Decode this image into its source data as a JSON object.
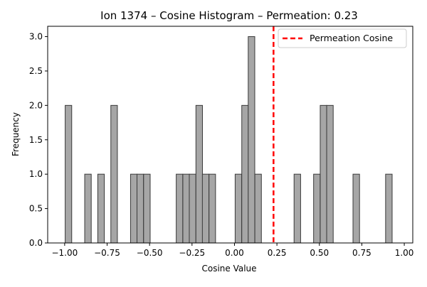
{
  "chart_data": {
    "type": "bar",
    "title": "Ion 1374 – Cosine Histogram – Permeation: 0.23",
    "xlabel": "Cosine Value",
    "ylabel": "Frequency",
    "xlim": [
      -1.1,
      1.05
    ],
    "ylim": [
      0,
      3.15
    ],
    "xticks": [
      {
        "value": -1.0,
        "label": "−1.00"
      },
      {
        "value": -0.75,
        "label": "−0.75"
      },
      {
        "value": -0.5,
        "label": "−0.50"
      },
      {
        "value": -0.25,
        "label": "−0.25"
      },
      {
        "value": 0.0,
        "label": "0.00"
      },
      {
        "value": 0.25,
        "label": "0.25"
      },
      {
        "value": 0.5,
        "label": "0.50"
      },
      {
        "value": 0.75,
        "label": "0.75"
      },
      {
        "value": 1.0,
        "label": "1.00"
      }
    ],
    "yticks": [
      {
        "value": 0.0,
        "label": "0.0"
      },
      {
        "value": 0.5,
        "label": "0.5"
      },
      {
        "value": 1.0,
        "label": "1.0"
      },
      {
        "value": 1.5,
        "label": "1.5"
      },
      {
        "value": 2.0,
        "label": "2.0"
      },
      {
        "value": 2.5,
        "label": "2.5"
      },
      {
        "value": 3.0,
        "label": "3.0"
      }
    ],
    "grid": false,
    "bin_width": 0.0385,
    "bins": [
      {
        "start": -0.997,
        "count": 2
      },
      {
        "start": -0.882,
        "count": 1
      },
      {
        "start": -0.805,
        "count": 1
      },
      {
        "start": -0.728,
        "count": 2
      },
      {
        "start": -0.612,
        "count": 1
      },
      {
        "start": -0.574,
        "count": 1
      },
      {
        "start": -0.535,
        "count": 1
      },
      {
        "start": -0.343,
        "count": 1
      },
      {
        "start": -0.304,
        "count": 1
      },
      {
        "start": -0.266,
        "count": 1
      },
      {
        "start": -0.227,
        "count": 2
      },
      {
        "start": -0.189,
        "count": 1
      },
      {
        "start": -0.15,
        "count": 1
      },
      {
        "start": 0.004,
        "count": 1
      },
      {
        "start": 0.043,
        "count": 2
      },
      {
        "start": 0.081,
        "count": 3
      },
      {
        "start": 0.12,
        "count": 1
      },
      {
        "start": 0.351,
        "count": 1
      },
      {
        "start": 0.466,
        "count": 1
      },
      {
        "start": 0.505,
        "count": 2
      },
      {
        "start": 0.543,
        "count": 2
      },
      {
        "start": 0.698,
        "count": 1
      },
      {
        "start": 0.89,
        "count": 1
      }
    ],
    "reference_line": {
      "x": 0.23,
      "label": "Permeation Cosine",
      "color": "#ff0000",
      "style": "dashed"
    },
    "legend_position": "top-right",
    "colors": {
      "bar_fill": "#a6a6a6",
      "bar_edge": "#3a3a3a"
    }
  }
}
